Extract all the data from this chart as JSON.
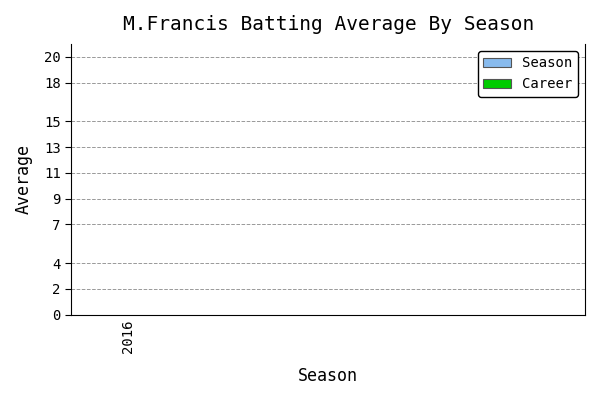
{
  "title": "M.Francis Batting Average By Season",
  "xlabel": "Season",
  "ylabel": "Average",
  "x_ticks": [
    2016
  ],
  "x_tick_labels": [
    "2016"
  ],
  "ylim": [
    0,
    21
  ],
  "xlim": [
    2015.5,
    2020
  ],
  "yticks": [
    0,
    2,
    4,
    7,
    9,
    11,
    13,
    15,
    18,
    20
  ],
  "season_color": "#88BBEE",
  "career_color": "#00CC00",
  "background_color": "#FFFFFF",
  "plot_bg_color": "#FFFFFF",
  "grid_color": "#999999",
  "legend_labels": [
    "Season",
    "Career"
  ],
  "title_fontsize": 14,
  "label_fontsize": 12,
  "tick_fontsize": 10,
  "font_family": "monospace"
}
